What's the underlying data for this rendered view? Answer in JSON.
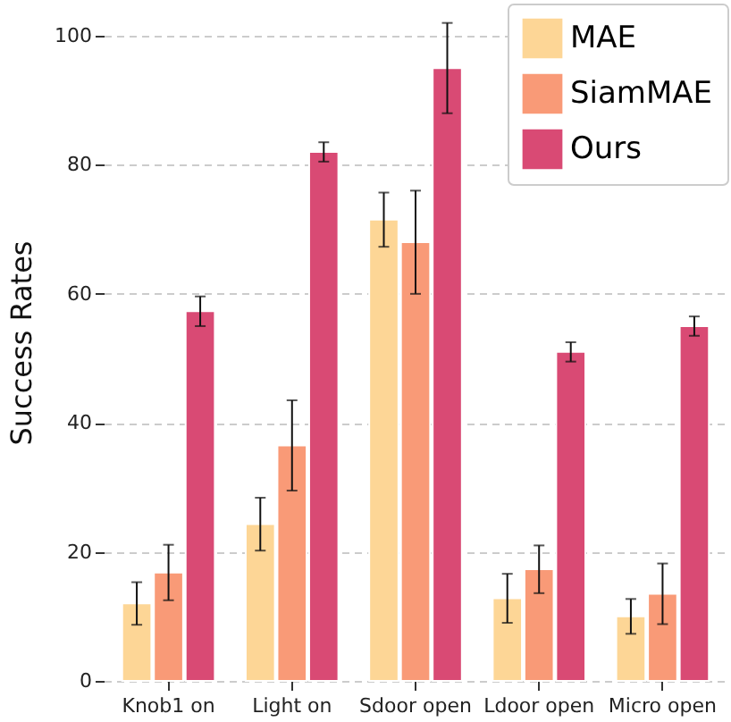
{
  "chart_data": {
    "type": "bar",
    "ylabel": "Success Rates",
    "categories": [
      "Knob1 on",
      "Light on",
      "Sdoor open",
      "Ldoor open",
      "Micro open"
    ],
    "series": [
      {
        "name": "MAE",
        "color": "#fdd696",
        "values": [
          12,
          24.3,
          71.5,
          12.8,
          10
        ],
        "errors": [
          3.3,
          4.1,
          4.2,
          3.8,
          2.7
        ]
      },
      {
        "name": "SiamMAE",
        "color": "#f99a77",
        "values": [
          16.8,
          36.5,
          68,
          17.3,
          13.5
        ],
        "errors": [
          4.3,
          7,
          8,
          3.7,
          4.7
        ]
      },
      {
        "name": "Ours",
        "color": "#d94a74",
        "values": [
          57.3,
          82,
          95,
          51,
          55
        ],
        "errors": [
          2.3,
          1.5,
          7,
          1.5,
          1.5
        ]
      }
    ],
    "ylim": [
      0,
      105
    ],
    "yticks": [
      0,
      20,
      40,
      60,
      80,
      100
    ],
    "grid": "y",
    "legend": "top right"
  }
}
